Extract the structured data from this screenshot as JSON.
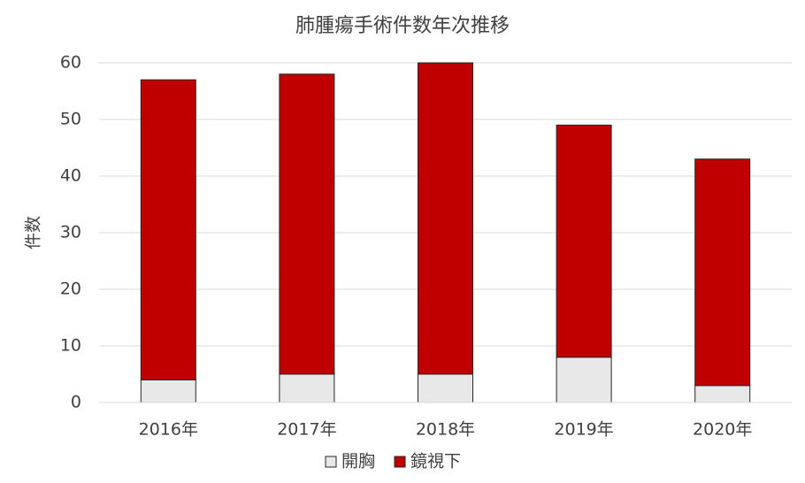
{
  "chart_data": {
    "type": "stacked_bar",
    "title": "肺腫瘍手術件数年次推移",
    "y_label": "件数",
    "categories": [
      "2016年",
      "2017年",
      "2018年",
      "2019年",
      "2020年"
    ],
    "series": [
      {
        "name": "開胸",
        "color": "#e8e8e8",
        "values": [
          4,
          5,
          5,
          8,
          3
        ]
      },
      {
        "name": "鏡視下",
        "color": "#c00000",
        "values": [
          53,
          53,
          55,
          41,
          40
        ]
      }
    ],
    "ylim": [
      0,
      60
    ],
    "yticks": [
      0,
      10,
      20,
      30,
      40,
      50,
      60
    ],
    "grid": true,
    "legend": "bottom"
  }
}
